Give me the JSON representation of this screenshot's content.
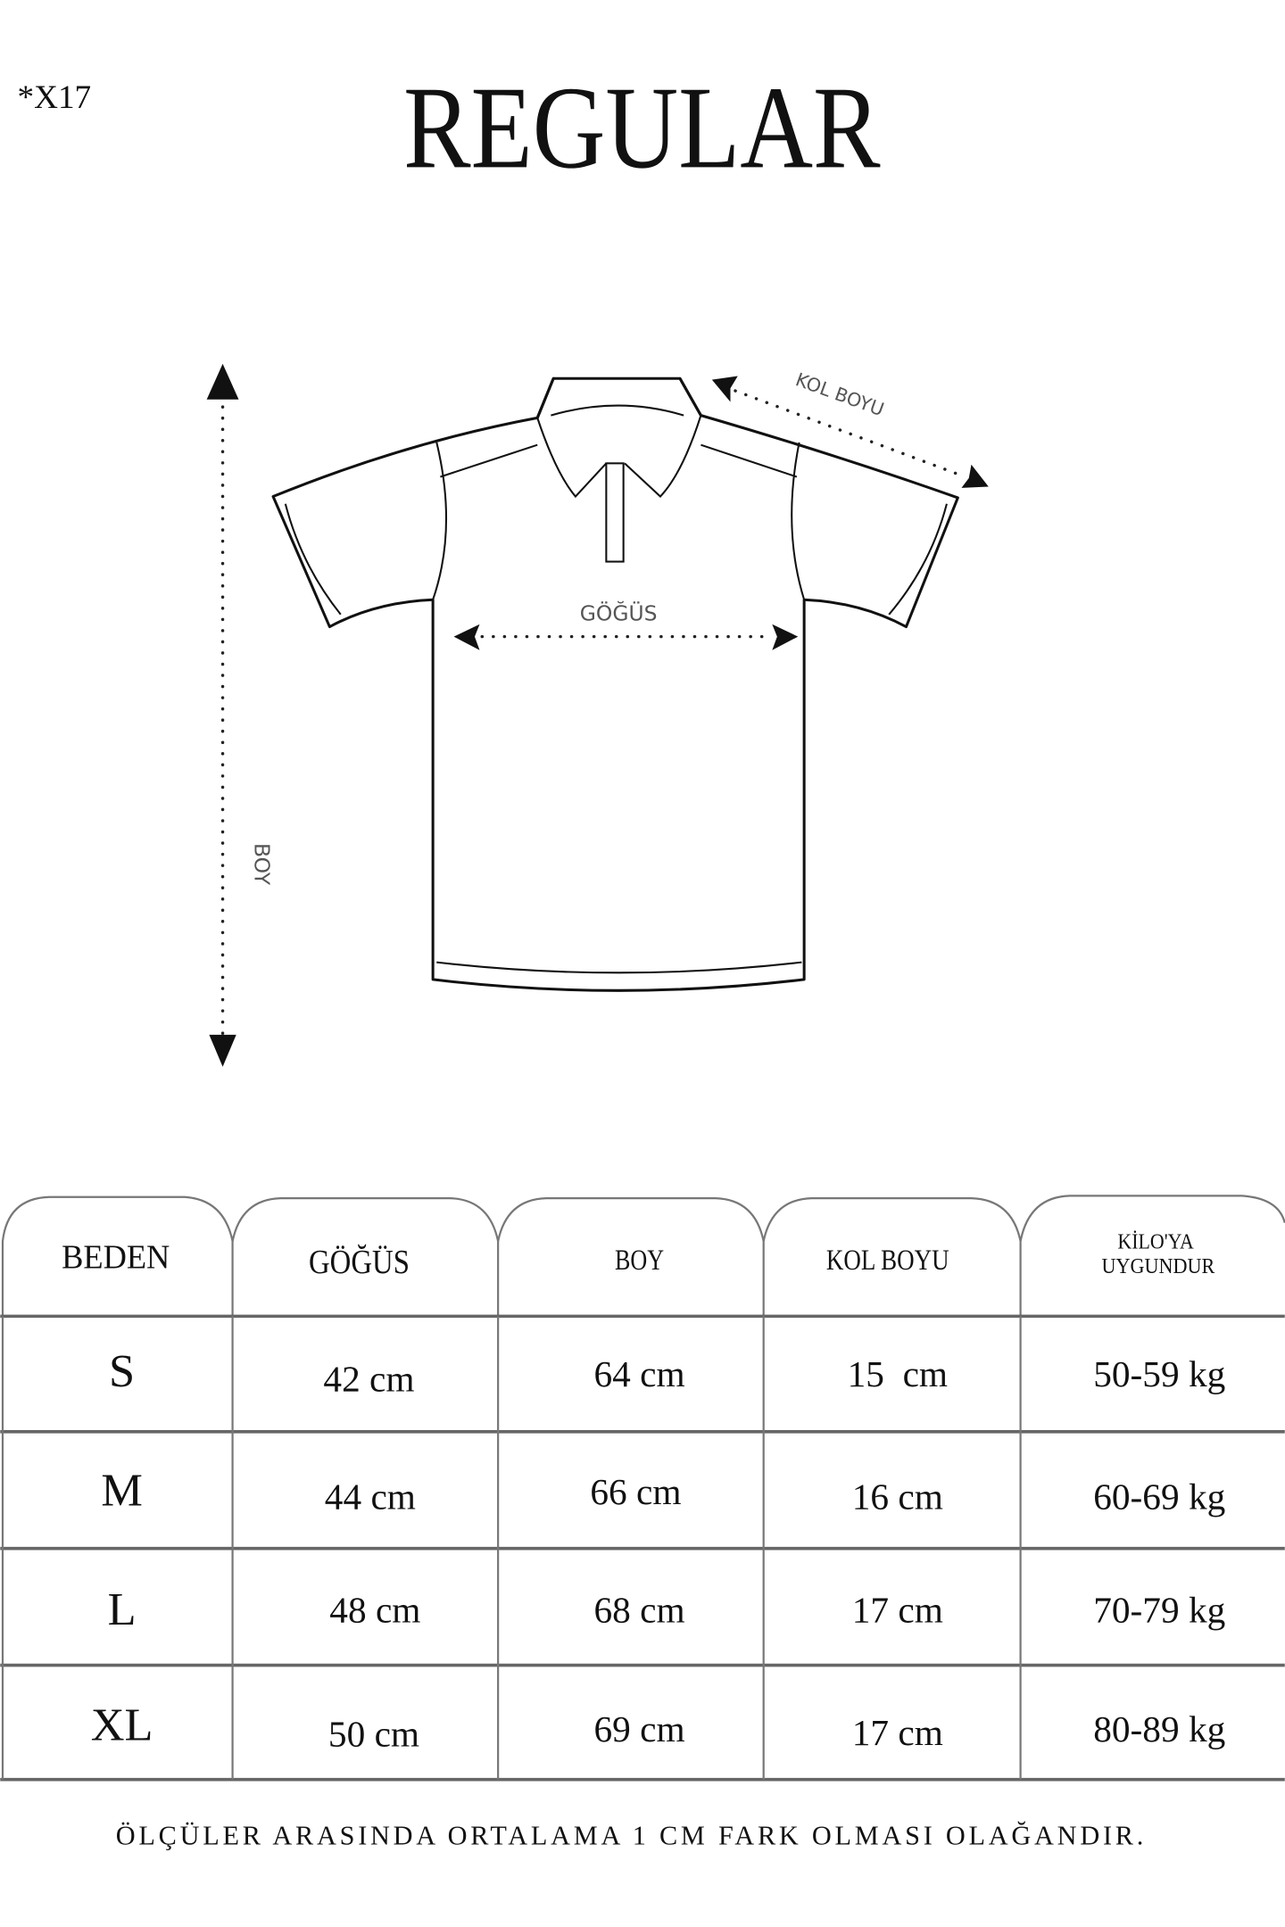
{
  "code": "*X17",
  "title": "REGULAR",
  "diagram": {
    "boy_label": "BOY",
    "gogus_label": "GÖĞÜS",
    "kol_boyu_label": "KOL BOYU"
  },
  "table": {
    "headers": [
      "BEDEN",
      "GÖĞÜS",
      "BOY",
      "KOL BOYU",
      "KİLO'YA",
      "UYGUNDUR"
    ],
    "rows": [
      {
        "size": "S",
        "gogus": "42 cm",
        "boy": "64 cm",
        "kol": "15  cm",
        "kilo": "50-59 kg"
      },
      {
        "size": "M",
        "gogus": "44 cm",
        "boy": "66 cm",
        "kol": "16 cm",
        "kilo": "60-69 kg"
      },
      {
        "size": "L",
        "gogus": "48 cm",
        "boy": "68 cm",
        "kol": "17 cm",
        "kilo": "70-79 kg"
      },
      {
        "size": "XL",
        "gogus": "50 cm",
        "boy": "69 cm",
        "kol": "17 cm",
        "kilo": "80-89 kg"
      }
    ]
  },
  "footnote": "ÖLÇÜLER ARASINDA ORTALAMA 1 CM FARK OLMASI OLAĞANDIR."
}
